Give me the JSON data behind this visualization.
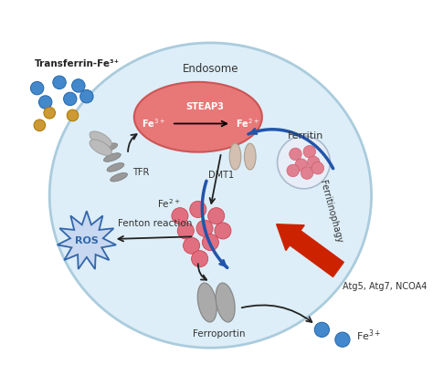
{
  "background_color": "#ffffff",
  "cell_color": "#ddeef8",
  "cell_border_color": "#aaccdd",
  "endosome_color": "#e87878",
  "labels": {
    "transferrin": "Transferrin-Fe³⁺",
    "endosome": "Endosome",
    "steap3": "STEAP3",
    "tfr": "TFR",
    "dmt1": "DMT1",
    "fe2_pool": "Fe²⁺",
    "fe3_endo": "Fe³⁺",
    "fe2_endo": "Fe²⁺",
    "ferritin": "Ferritin",
    "ferritinophagy": "Ferritinophagy",
    "atg": "Atg5, Atg7, NCOA4",
    "ros": "ROS",
    "fenton": "Fenton reaction",
    "ferroportin": "Ferroportin",
    "fe3_out": "Fe³⁺"
  },
  "iron_dot_color": "#e07080",
  "blue_dot_color": "#4488cc",
  "gold_dot_color": "#cc9933",
  "arrow_color": "#2255aa",
  "red_arrow_color": "#cc2200",
  "black_arrow_color": "#222222",
  "ros_color": "#3366aa",
  "ros_fill": "#c8d8f0"
}
